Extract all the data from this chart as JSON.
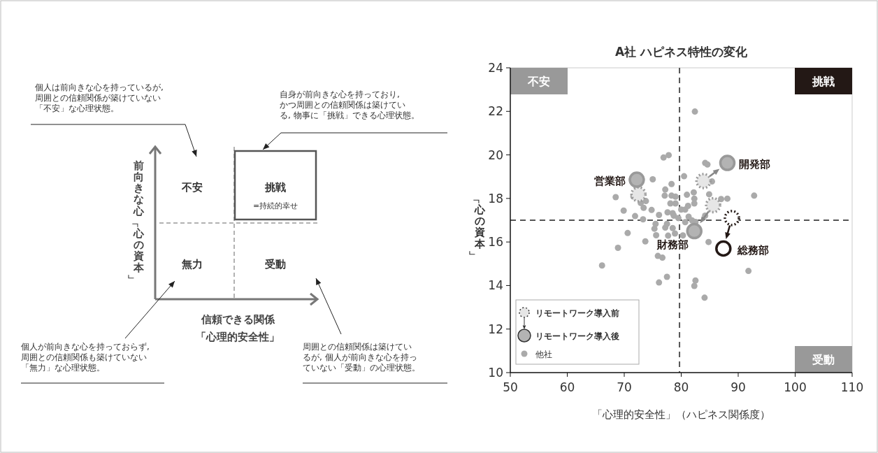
{
  "chart_data": [
    {
      "type": "other",
      "xlabel": "信頼できる関係「心理的安全性」",
      "ylabel": "前向きな心「心の資本」",
      "annotations": [
        "不安",
        "挑戦",
        "=持続的幸せ",
        "無力",
        "受動",
        "個人は前向きな心を持っているが,周囲との信頼関係が築けていない「不安」な心理状態。",
        "自身が前向きな心を持っており,かつ周囲との信頼関係は築けている, 物事に「挑戦」できる心理状態。",
        "個人が前向きな心を持っておらず,周囲との信頼関係も築けていない「無力」な心理状態。",
        "周囲との信頼関係は築けているが, 個人が前向きな心を持っていない「受動」の心理状態。"
      ]
    },
    {
      "type": "scatter",
      "title": "A社 ハピネス特性の変化",
      "xlabel": "「心理的安全性」（ハピネス関係度）",
      "ylabel": "「心の資本」",
      "xlim": [
        50,
        110
      ],
      "xticks": [
        50,
        60,
        70,
        80,
        90,
        100,
        110
      ],
      "ylim": [
        10,
        24
      ],
      "yticks": [
        10,
        12,
        14,
        16,
        18,
        20,
        22,
        24
      ],
      "grid": false,
      "legend": "bottom left",
      "marker": "circle",
      "series": [
        {
          "name": "他社",
          "color": "#aaaaaa",
          "x": [
            82.4,
            76.9,
            77.8,
            84.2,
            84.6,
            75.0,
            80.5,
            85.4,
            78.3,
            77.2,
            68.5,
            77.1,
            78.3,
            79.0,
            81.0,
            82.2,
            82.3,
            84.9,
            87.0,
            88.1,
            92.8,
            71.6,
            72.9,
            73.8,
            73.4,
            69.9,
            74.8,
            78.1,
            79.0,
            81.2,
            82.3,
            80.0,
            80.7,
            77.6,
            78.5,
            78.7,
            71.9,
            73.3,
            76.1,
            81.3,
            84.2,
            85.2,
            79.5,
            82.5,
            70.6,
            73.7,
            68.9,
            66.1,
            75.3,
            75.6,
            77.2,
            78.5,
            77.7,
            78.9,
            80.3,
            75.9,
            76.7,
            84.8,
            76.1,
            77.5,
            82.5,
            82.3,
            84.1,
            91.8,
            75.5,
            77.5,
            80.7,
            81.9
          ],
          "values": [
            21.99,
            19.88,
            19.99,
            19.63,
            19.56,
            18.88,
            19.02,
            18.78,
            18.66,
            18.41,
            18.06,
            18.13,
            18.13,
            18.08,
            18.17,
            18.28,
            17.99,
            18.19,
            17.97,
            17.99,
            18.13,
            18.09,
            17.79,
            17.88,
            17.57,
            17.44,
            17.47,
            17.77,
            17.77,
            17.66,
            17.77,
            17.49,
            17.49,
            17.36,
            17.32,
            17.21,
            17.19,
            17.04,
            17.24,
            17.16,
            17.21,
            17.52,
            17.1,
            16.92,
            16.41,
            16.03,
            15.73,
            14.92,
            16.61,
            16.31,
            16.66,
            16.64,
            16.29,
            16.39,
            16.3,
            15.36,
            15.28,
            16.0,
            14.14,
            14.4,
            14.23,
            13.98,
            13.44,
            14.67,
            16.83,
            16.83,
            16.91,
            16.99
          ]
        },
        {
          "name": "リモートワーク導入前",
          "color": "#e6e6e6",
          "line_style": "dotted",
          "x": [
            72.5,
            83.9,
            85.6,
            88.9
          ],
          "values": [
            18.19,
            18.8,
            17.69,
            17.1
          ],
          "colors": [
            "#e6e6e6",
            "#e6e6e6",
            "#e6e6e6",
            "#ffffff"
          ]
        },
        {
          "name": "リモートワーク導入後",
          "color": "#b3b3b3",
          "line_style": "solid",
          "x": [
            72.2,
            88.1,
            82.3,
            87.4
          ],
          "values": [
            18.86,
            19.63,
            16.5,
            15.7
          ],
          "colors": [
            "#b3b3b3",
            "#b3b3b3",
            "#b3b3b3",
            "#ffffff"
          ]
        }
      ],
      "ref_lines": [
        {
          "axis": "x",
          "value": 79.7,
          "line_style": "dashed"
        },
        {
          "axis": "y",
          "value": 17,
          "line_style": "dashed"
        }
      ],
      "annotations": [
        "不安",
        "挑戦",
        "受動",
        {
          "text": "営業部",
          "x": 72.2,
          "y": 18.86
        },
        {
          "text": "開発部",
          "x": 88.1,
          "y": 19.63
        },
        {
          "text": "財務部",
          "x": 82.3,
          "y": 16.5
        },
        {
          "text": "総務部",
          "x": 87.4,
          "y": 15.7
        }
      ]
    }
  ]
}
